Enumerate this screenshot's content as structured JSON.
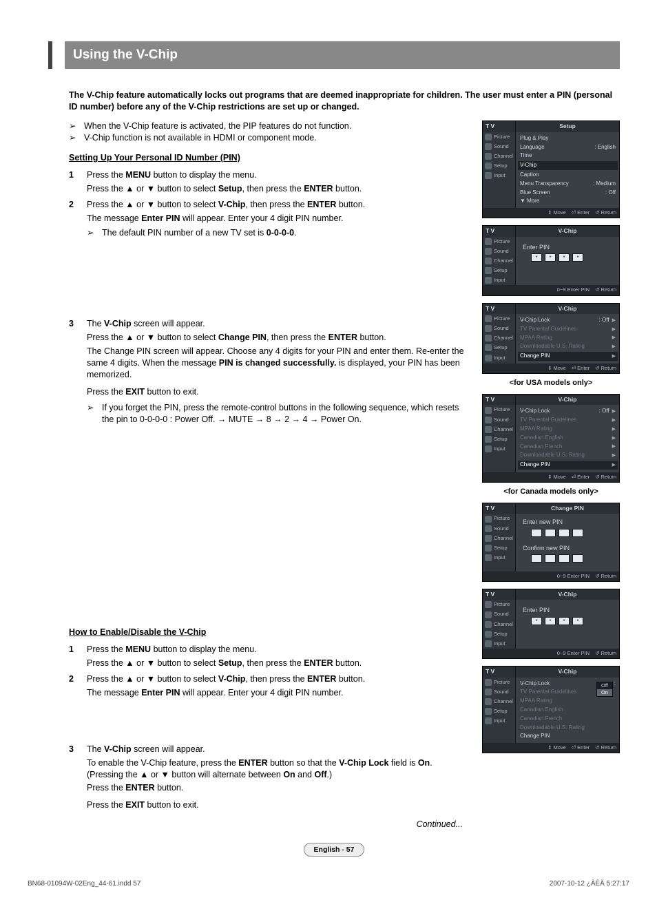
{
  "title": "Using the V-Chip",
  "intro": "The V-Chip feature automatically locks out programs that are deemed inappropriate for children. The user must enter a PIN (personal ID number) before any of the V-Chip restrictions are set up or changed.",
  "arrow_notes": [
    "When the V-Chip feature is activated, the PIP features do not function.",
    "V-Chip function is not available in HDMI or component mode."
  ],
  "section1_head": "Setting Up Your Personal ID Number (PIN)",
  "section1_steps": {
    "s1": {
      "num": "1",
      "l1a": "Press the ",
      "l1b": "MENU",
      "l1c": " button to display the menu.",
      "l2a": "Press the ▲ or ▼ button to select ",
      "l2b": "Setup",
      "l2c": ", then press the ",
      "l2d": "ENTER",
      "l2e": " button."
    },
    "s2": {
      "num": "2",
      "l1a": "Press the ▲ or ▼ button to select ",
      "l1b": "V-Chip",
      "l1c": ", then press the ",
      "l1d": "ENTER",
      "l1e": " button.",
      "l2a": "The message ",
      "l2b": "Enter PIN",
      "l2c": " will appear. Enter your 4 digit PIN number.",
      "suba": "The default PIN number of a new TV set is ",
      "subb": "0-0-0-0",
      "subc": "."
    },
    "s3": {
      "num": "3",
      "l1a": "The ",
      "l1b": "V-Chip",
      "l1c": " screen will appear.",
      "l2a": "Press the ▲ or ▼ button to select ",
      "l2b": "Change PIN",
      "l2c": ", then press the ",
      "l2d": "ENTER",
      "l2e": " button.",
      "l3": "The Change PIN screen will appear. Choose any 4 digits for your PIN and enter them. Re-enter the same 4 digits. When the message ",
      "l3b": "PIN is changed successfully.",
      "l3c": " is displayed, your PIN has been memorized.",
      "l4a": "Press the ",
      "l4b": "EXIT",
      "l4c": " button to exit.",
      "sub": "If you forget the PIN, press the remote-control buttons in the following sequence, which resets the pin to 0-0-0-0 : Power Off. → MUTE → 8 → 2 → 4 → Power On."
    }
  },
  "section2_head": "How to Enable/Disable the V-Chip",
  "section2_steps": {
    "s1": {
      "num": "1",
      "l1a": "Press the ",
      "l1b": "MENU",
      "l1c": " button to display the menu.",
      "l2a": "Press the ▲ or ▼ button to select ",
      "l2b": "Setup",
      "l2c": ", then press the ",
      "l2d": "ENTER",
      "l2e": " button."
    },
    "s2": {
      "num": "2",
      "l1a": "Press the ▲ or ▼ button to select ",
      "l1b": "V-Chip",
      "l1c": ", then press the ",
      "l1d": "ENTER",
      "l1e": " button.",
      "l2a": "The message ",
      "l2b": "Enter PIN",
      "l2c": " will appear. Enter your 4 digit PIN number."
    },
    "s3": {
      "num": "3",
      "l1a": "The ",
      "l1b": "V-Chip",
      "l1c": " screen will appear.",
      "l2a": "To enable the V-Chip feature, press the ",
      "l2b": "ENTER",
      "l2c": " button so that the ",
      "l2d": "V-Chip Lock",
      "l2e": " field is ",
      "l2f": "On",
      "l2g": ". (Pressing the ▲ or ▼ button will alternate between ",
      "l2h": "On",
      "l2i": " and ",
      "l2j": "Off",
      "l2k": ".)",
      "l3a": "Press the ",
      "l3b": "ENTER",
      "l3c": " button.",
      "l4a": "Press the ",
      "l4b": "EXIT",
      "l4c": " button to exit."
    }
  },
  "continued": "Continued...",
  "pagefoot": "English - 57",
  "docfooter_left": "BN68-01094W-02Eng_44-61.indd   57",
  "docfooter_right": "2007-10-12   ¿ÀÈÄ 5:27:17",
  "osd_nav": [
    "Picture",
    "Sound",
    "Channel",
    "Setup",
    "Input"
  ],
  "osd": {
    "tv": "T V",
    "setup": {
      "title": "Setup",
      "items": [
        {
          "l": "Plug & Play",
          "r": ""
        },
        {
          "l": "Language",
          "r": ": English"
        },
        {
          "l": "Time",
          "r": ""
        },
        {
          "l": "V-Chip",
          "r": "",
          "hl": true
        },
        {
          "l": "Caption",
          "r": ""
        },
        {
          "l": "Menu Transparency",
          "r": ": Medium"
        },
        {
          "l": "Blue Screen",
          "r": ": Off"
        },
        {
          "l": "▼ More",
          "r": ""
        }
      ],
      "foot": [
        "⇕ Move",
        "⏎ Enter",
        "↺ Return"
      ]
    },
    "enterpin": {
      "title": "V-Chip",
      "label": "Enter PIN",
      "stars": [
        "*",
        "*",
        "*",
        "*"
      ],
      "foot": [
        "0~9 Enter PIN",
        "↺ Return"
      ]
    },
    "vchip_usa": {
      "title": "V-Chip",
      "items": [
        {
          "l": "V-Chip Lock",
          "r": ": Off",
          "car": "▶"
        },
        {
          "l": "TV Parental Guidelines",
          "r": "",
          "dim": true,
          "car": "▶"
        },
        {
          "l": "MPAA Rating",
          "r": "",
          "dim": true,
          "car": "▶"
        },
        {
          "l": "Downloadable U.S. Rating",
          "r": "",
          "dim": true,
          "car": "▶"
        },
        {
          "l": "Change PIN",
          "r": "",
          "hl": true,
          "car": "▶"
        }
      ],
      "foot": [
        "⇕ Move",
        "⏎ Enter",
        "↺ Return"
      ],
      "caption": "<for USA models only>"
    },
    "vchip_can": {
      "title": "V-Chip",
      "items": [
        {
          "l": "V-Chip Lock",
          "r": ": Off",
          "car": "▶"
        },
        {
          "l": "TV Parental Guidelines",
          "r": "",
          "dim": true,
          "car": "▶"
        },
        {
          "l": "MPAA Rating",
          "r": "",
          "dim": true,
          "car": "▶"
        },
        {
          "l": "Canadian English",
          "r": "",
          "dim": true,
          "car": "▶"
        },
        {
          "l": "Canadian French",
          "r": "",
          "dim": true,
          "car": "▶"
        },
        {
          "l": "Downloadable U.S. Rating",
          "r": "",
          "dim": true,
          "car": "▶"
        },
        {
          "l": "Change PIN",
          "r": "",
          "hl": true,
          "car": "▶"
        }
      ],
      "foot": [
        "⇕ Move",
        "⏎ Enter",
        "↺ Return"
      ],
      "caption": "<for Canada models only>"
    },
    "changepin": {
      "title": "Change PIN",
      "label1": "Enter new PIN",
      "label2": "Confirm new PIN",
      "foot": [
        "0~9 Enter PIN",
        "↺ Return"
      ]
    },
    "vchip_drop": {
      "title": "V-Chip",
      "items": [
        {
          "l": "V-Chip Lock",
          "r": ":",
          "drop": [
            "Off",
            "On"
          ],
          "sel": 1
        },
        {
          "l": "TV Parental Guidelines",
          "r": "",
          "dim": true
        },
        {
          "l": "MPAA Rating",
          "r": "",
          "dim": true
        },
        {
          "l": "Canadian English",
          "r": "",
          "dim": true
        },
        {
          "l": "Canadian French",
          "r": "",
          "dim": true
        },
        {
          "l": "Downloadable U.S. Rating",
          "r": "",
          "dim": true
        },
        {
          "l": "Change PIN",
          "r": ""
        }
      ],
      "foot": [
        "⇕ Move",
        "⏎ Enter",
        "↺ Return"
      ]
    }
  }
}
